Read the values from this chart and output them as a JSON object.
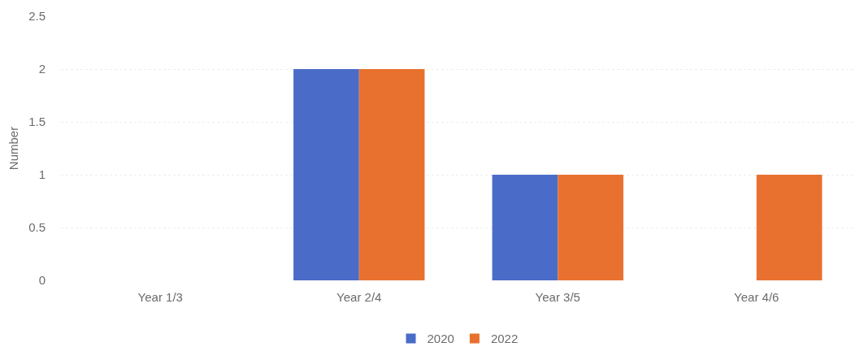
{
  "chart_data": {
    "type": "bar",
    "categories": [
      "Year 1/3",
      "Year 2/4",
      "Year 3/5",
      "Year 4/6"
    ],
    "series": [
      {
        "name": "2020",
        "color": "#4a6cc8",
        "values": [
          0,
          2,
          1,
          0
        ]
      },
      {
        "name": "2022",
        "color": "#e8712f",
        "values": [
          0,
          2,
          1,
          1
        ]
      }
    ],
    "ylabel": "Number",
    "ylim": [
      0,
      2.5
    ],
    "yticks": [
      0,
      0.5,
      1,
      1.5,
      2,
      2.5
    ],
    "grid": "y",
    "legend": "bottom"
  }
}
